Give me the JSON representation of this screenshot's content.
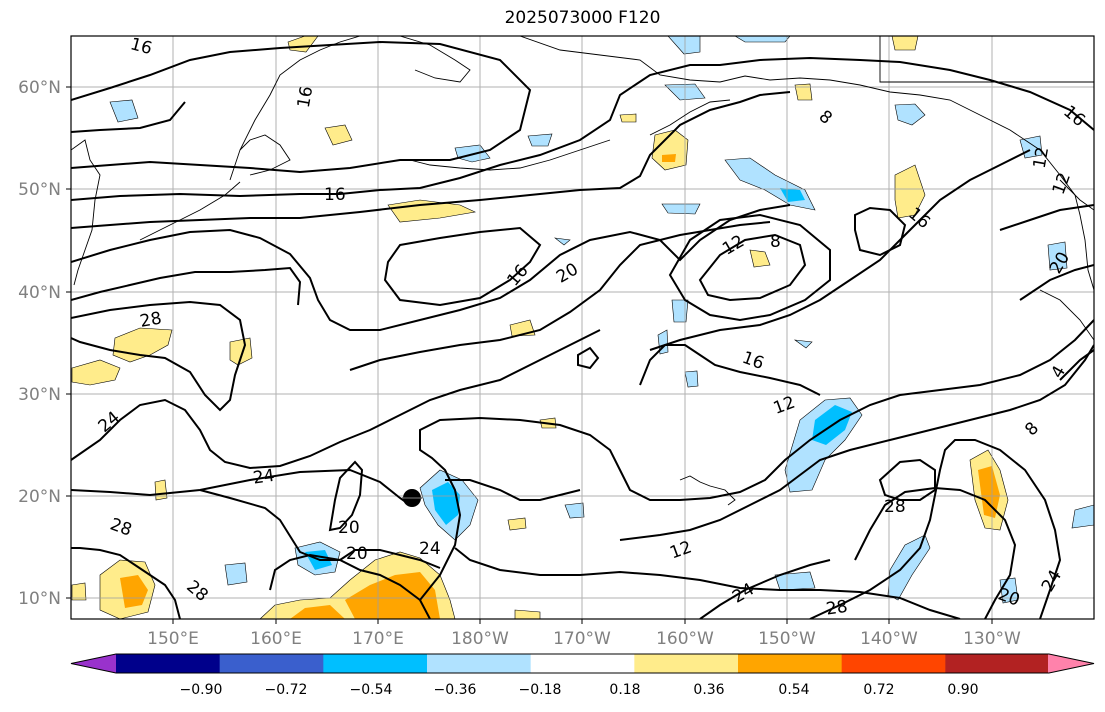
{
  "map": {
    "title": "2025073000 F120",
    "lat_labels": [
      "60°N",
      "50°N",
      "40°N",
      "30°N",
      "20°N",
      "10°N"
    ],
    "lon_labels": [
      "150°E",
      "160°E",
      "170°E",
      "180°W",
      "170°W",
      "160°W",
      "150°W",
      "140°W",
      "130°W"
    ],
    "contour_labels": [
      "16",
      "16",
      "16",
      "16",
      "16",
      "16",
      "12",
      "8",
      "20",
      "20",
      "28",
      "28",
      "28",
      "24",
      "24",
      "24",
      "24",
      "20",
      "20",
      "12",
      "12",
      "12",
      "8",
      "4",
      "28",
      "24",
      "20",
      "16",
      "8",
      "12",
      "28"
    ],
    "colorbar": {
      "ticks": [
        "−0.90",
        "−0.72",
        "−0.54",
        "−0.36",
        "−0.18",
        "0.18",
        "0.36",
        "0.54",
        "0.72",
        "0.90"
      ],
      "colors": [
        "#9932cc",
        "#00008b",
        "#3a5fcd",
        "#00bfff",
        "#b0e2ff",
        "#ffffff",
        "#ffec8b",
        "#ffa500",
        "#ff4500",
        "#b22222",
        "#ff82ab"
      ]
    }
  }
}
